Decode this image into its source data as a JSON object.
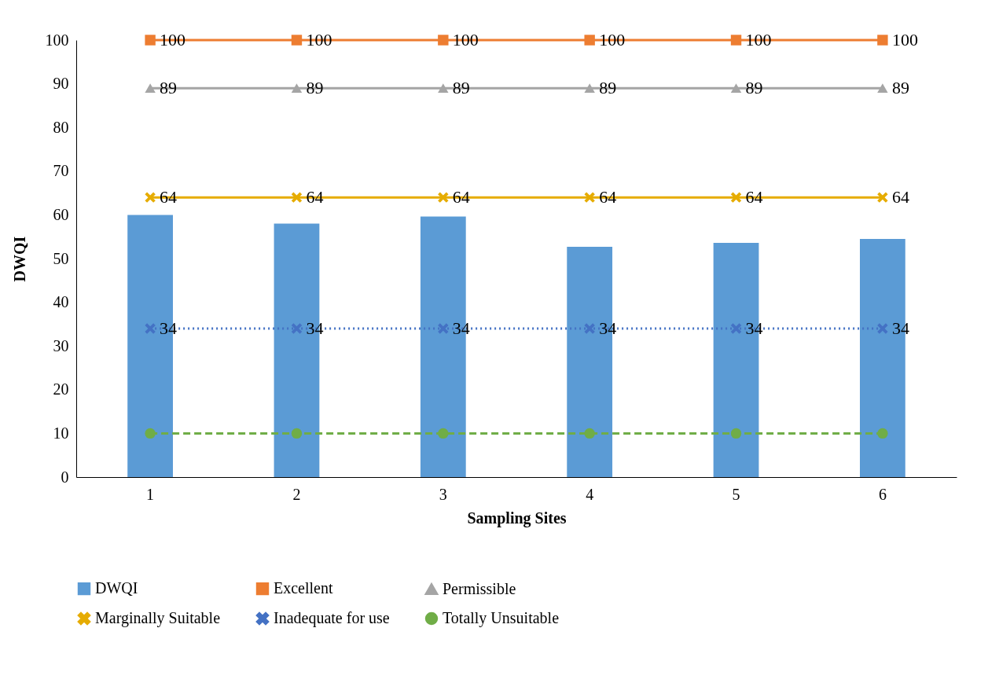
{
  "chart_data": {
    "type": "bar",
    "categories": [
      "1",
      "2",
      "3",
      "4",
      "5",
      "6"
    ],
    "xlabel": "Sampling Sites",
    "ylabel": "DWQI",
    "ylim": [
      0,
      100
    ],
    "yticks": [
      0,
      10,
      20,
      30,
      40,
      50,
      60,
      70,
      80,
      90,
      100
    ],
    "grid": false,
    "legend": "bottom",
    "series": [
      {
        "name": "DWQI",
        "color": "#5b9bd5",
        "values": [
          60,
          58,
          59.6,
          52.7,
          53.6,
          54.5
        ]
      },
      {
        "name": "Excellent",
        "type": "line",
        "color": "#ed7d31",
        "marker": "square",
        "line_style": "solid",
        "values": [
          100,
          100,
          100,
          100,
          100,
          100
        ],
        "value_labels": [
          "100",
          "100",
          "100",
          "100",
          "100",
          "100"
        ]
      },
      {
        "name": "Permissible",
        "type": "line",
        "color": "#a5a5a5",
        "marker": "triangle",
        "line_style": "solid",
        "values": [
          89,
          89,
          89,
          89,
          89,
          89
        ],
        "value_labels": [
          "89",
          "89",
          "89",
          "89",
          "89",
          "89"
        ]
      },
      {
        "name": "Marginally Suitable",
        "type": "line",
        "color": "#e6ac00",
        "marker": "cross",
        "line_style": "solid",
        "values": [
          64,
          64,
          64,
          64,
          64,
          64
        ],
        "value_labels": [
          "64",
          "64",
          "64",
          "64",
          "64",
          "64"
        ]
      },
      {
        "name": "Inadequate for use",
        "type": "line",
        "color": "#4472c4",
        "marker": "cross",
        "line_style": "dotted",
        "values": [
          34,
          34,
          34,
          34,
          34,
          34
        ],
        "value_labels": [
          "34",
          "34",
          "34",
          "34",
          "34",
          "34"
        ]
      },
      {
        "name": "Totally Unsuitable",
        "type": "line",
        "color": "#70ad47",
        "marker": "circle",
        "line_style": "dashed",
        "values": [
          10,
          10,
          10,
          10,
          10,
          10
        ]
      }
    ]
  }
}
